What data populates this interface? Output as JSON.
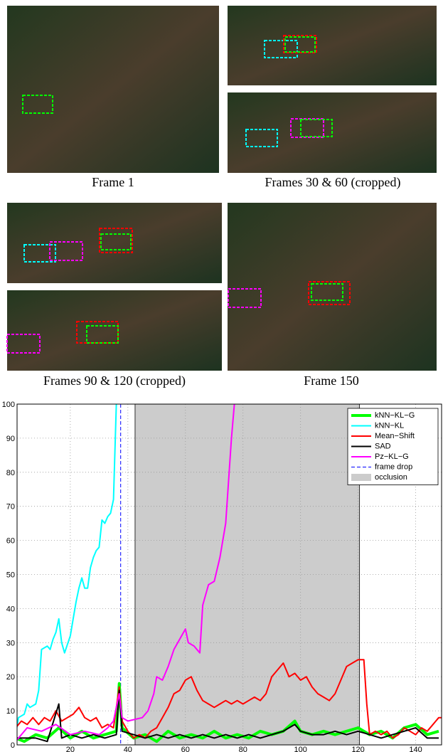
{
  "figure": {
    "captions": [
      "Frame 1",
      "Frames 30 & 60 (cropped)",
      "Frames 90 & 120 (cropped)",
      "Frame 150"
    ]
  },
  "chart_data": {
    "type": "line",
    "xlim": [
      1.5,
      149
    ],
    "ylim": [
      0,
      100
    ],
    "xticks": [
      20,
      40,
      60,
      80,
      100,
      120,
      140
    ],
    "yticks": [
      0,
      10,
      20,
      30,
      40,
      50,
      60,
      70,
      80,
      90,
      100
    ],
    "grid": true,
    "legend": "upper right",
    "occlusion": {
      "name": "occlusion",
      "range": [
        42.5,
        120.5
      ],
      "color": "#cccccc"
    },
    "frame_drop": {
      "name": "frame drop",
      "x": 37.5,
      "color": "#0000ff"
    },
    "series": [
      {
        "name": "kNN−KL−G",
        "color": "#00ff00",
        "width": 4,
        "x": [
          1,
          4,
          8,
          12,
          16,
          20,
          24,
          28,
          32,
          36,
          37,
          38,
          42,
          46,
          50,
          54,
          58,
          62,
          66,
          70,
          74,
          78,
          82,
          86,
          90,
          94,
          98,
          100,
          104,
          108,
          112,
          116,
          120,
          124,
          128,
          132,
          136,
          140,
          144,
          148
        ],
        "values": [
          2,
          1,
          3,
          2,
          5,
          2,
          4,
          2,
          3,
          4,
          18,
          5,
          2,
          3,
          1,
          4,
          2,
          3,
          2,
          4,
          2,
          3,
          2,
          4,
          3,
          4,
          7,
          4,
          3,
          4,
          3,
          4,
          5,
          3,
          4,
          2,
          5,
          6,
          3,
          4
        ]
      },
      {
        "name": "kNN−KL",
        "color": "#00ffff",
        "width": 2,
        "x": [
          1,
          2,
          4,
          5,
          6,
          8,
          9,
          10,
          12,
          13,
          14,
          15,
          16,
          17,
          18,
          20,
          21,
          22,
          23,
          24,
          25,
          26,
          27,
          28,
          29,
          30,
          31,
          32,
          33,
          34,
          35,
          36
        ],
        "values": [
          3,
          8,
          9,
          12,
          11,
          12,
          16,
          28,
          29,
          28,
          31,
          33,
          37,
          30,
          27,
          32,
          37,
          42,
          46,
          49,
          46,
          46,
          52,
          55,
          57,
          58,
          66,
          65,
          67,
          68,
          72,
          100
        ]
      },
      {
        "name": "Mean−Shift",
        "color": "#ff0000",
        "width": 2,
        "x": [
          1,
          3,
          5,
          7,
          9,
          11,
          13,
          15,
          17,
          19,
          21,
          23,
          25,
          27,
          29,
          31,
          33,
          35,
          37,
          38,
          40,
          42,
          44,
          46,
          48,
          50,
          52,
          54,
          56,
          58,
          60,
          62,
          64,
          66,
          68,
          70,
          72,
          74,
          76,
          78,
          80,
          82,
          84,
          86,
          88,
          90,
          92,
          94,
          96,
          98,
          100,
          102,
          104,
          106,
          108,
          110,
          112,
          114,
          116,
          118,
          120,
          122,
          123,
          124,
          126,
          128,
          130,
          132,
          134,
          136,
          138,
          140,
          142,
          144,
          146,
          148,
          149
        ],
        "values": [
          5,
          7,
          6,
          8,
          6,
          8,
          7,
          10,
          7,
          8,
          9,
          11,
          8,
          7,
          8,
          5,
          6,
          5,
          17,
          7,
          4,
          2,
          3,
          2,
          4,
          5,
          8,
          11,
          15,
          16,
          19,
          20,
          16,
          13,
          12,
          11,
          12,
          13,
          12,
          13,
          12,
          13,
          14,
          13,
          15,
          20,
          22,
          24,
          20,
          21,
          19,
          20,
          17,
          15,
          14,
          13,
          15,
          19,
          23,
          24,
          25,
          25,
          12,
          3,
          4,
          3,
          4,
          2,
          3,
          5,
          4,
          3,
          5,
          4,
          6,
          8,
          8
        ]
      },
      {
        "name": "SAD",
        "color": "#000000",
        "width": 2,
        "x": [
          1,
          4,
          8,
          12,
          16,
          17,
          20,
          24,
          28,
          32,
          36,
          37,
          38,
          42,
          46,
          50,
          54,
          58,
          62,
          66,
          70,
          74,
          78,
          82,
          86,
          90,
          94,
          98,
          100,
          104,
          108,
          112,
          116,
          120,
          124,
          128,
          132,
          136,
          140,
          144,
          148
        ],
        "values": [
          2,
          2,
          2,
          1,
          12,
          2,
          3,
          2,
          3,
          2,
          3,
          16,
          4,
          3,
          2,
          3,
          2,
          3,
          2,
          3,
          2,
          3,
          2,
          3,
          2,
          3,
          4,
          6,
          4,
          3,
          3,
          4,
          3,
          4,
          3,
          2,
          3,
          4,
          5,
          2,
          2
        ]
      },
      {
        "name": "Pz−KL−G",
        "color": "#ff00ff",
        "width": 2,
        "x": [
          1,
          5,
          10,
          15,
          20,
          25,
          30,
          33,
          35,
          37,
          38,
          40,
          45,
          47,
          49,
          50,
          52,
          54,
          56,
          58,
          60,
          61,
          63,
          65,
          66,
          68,
          70,
          72,
          74,
          76,
          77
        ],
        "values": [
          1,
          5,
          4,
          6,
          3,
          4,
          3,
          5,
          7,
          15,
          8,
          7,
          8,
          10,
          15,
          20,
          19,
          23,
          28,
          31,
          34,
          30,
          29,
          27,
          41,
          47,
          48,
          55,
          65,
          90,
          100
        ]
      }
    ]
  }
}
